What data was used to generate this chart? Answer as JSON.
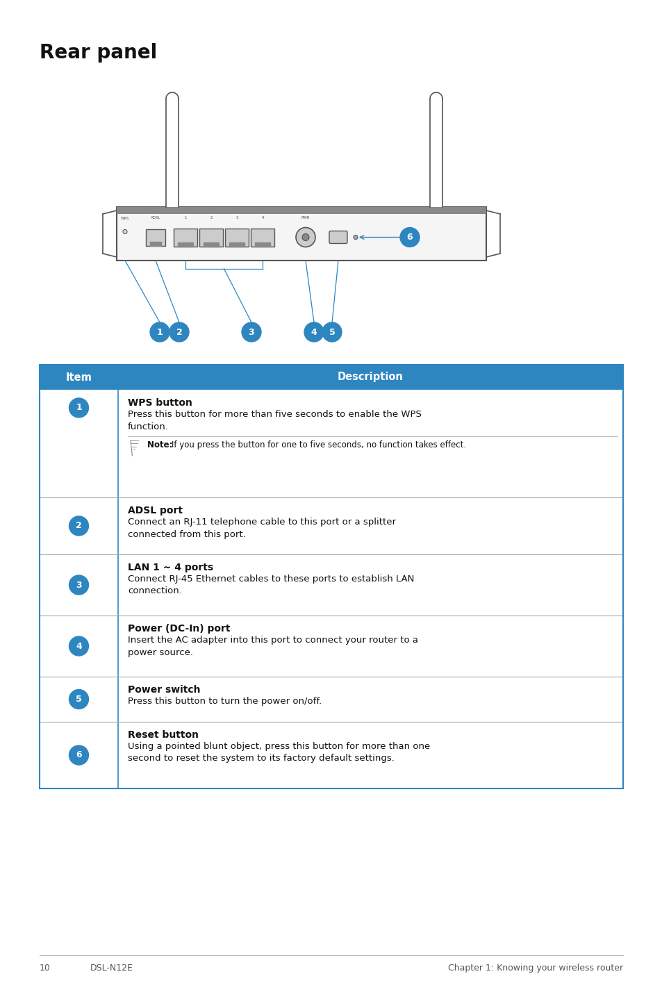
{
  "page_title": "Rear panel",
  "bg_color": "#ffffff",
  "circle_color": "#2e86c1",
  "circle_text_color": "#ffffff",
  "table_header_bg": "#2e86c1",
  "table_header_text": "#ffffff",
  "table_border_color": "#2e86c1",
  "table_divider_color": "#aaaaaa",
  "item_col_label": "Item",
  "desc_col_label": "Description",
  "rows": [
    {
      "num": "1",
      "title": "WPS button",
      "desc": "Press this button for more than five seconds to enable the WPS\nfunction.",
      "note": "If you press the button for one to five seconds, no function takes effect.",
      "has_note": true
    },
    {
      "num": "2",
      "title": "ADSL port",
      "desc": "Connect an RJ-11 telephone cable to this port or a splitter\nconnected from this port.",
      "has_note": false
    },
    {
      "num": "3",
      "title": "LAN 1 ~ 4 ports",
      "desc": "Connect RJ-45 Ethernet cables to these ports to establish LAN\nconnection.",
      "has_note": false
    },
    {
      "num": "4",
      "title": "Power (DC-In) port",
      "desc": "Insert the AC adapter into this port to connect your router to a\npower source.",
      "has_note": false
    },
    {
      "num": "5",
      "title": "Power switch",
      "desc": "Press this button to turn the power on/off.",
      "has_note": false
    },
    {
      "num": "6",
      "title": "Reset button",
      "desc": "Using a pointed blunt object, press this button for more than one\nsecond to reset the system to its factory default settings.",
      "has_note": false
    }
  ],
  "footer_page_num": "10",
  "footer_left": "DSL-N12E",
  "footer_right": "Chapter 1: Knowing your wireless router"
}
